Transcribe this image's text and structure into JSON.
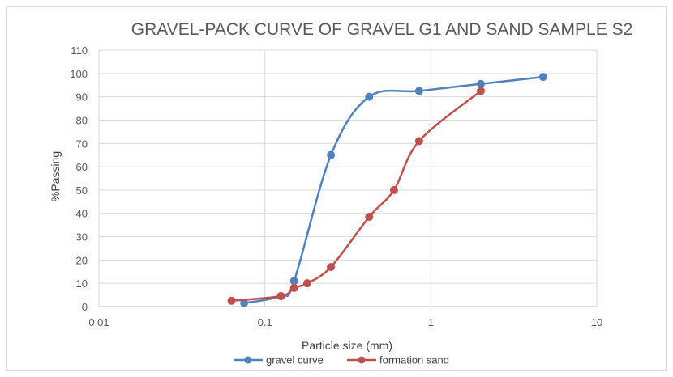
{
  "chart_data": {
    "type": "scatter",
    "title": "GRAVEL-PACK CURVE OF GRAVEL G1 AND SAND SAMPLE S2",
    "xlabel": "Particle size (mm)",
    "ylabel": "%Passing",
    "xscale": "log",
    "xlim": [
      0.01,
      10
    ],
    "ylim": [
      0,
      110
    ],
    "x_ticks": [
      "0.01",
      "0.1",
      "1",
      "10"
    ],
    "y_ticks": [
      "0",
      "10",
      "20",
      "30",
      "40",
      "50",
      "60",
      "70",
      "80",
      "90",
      "100",
      "110"
    ],
    "grid": true,
    "legend": "bottom",
    "series": [
      {
        "name": "gravel curve",
        "color": "#4f81bd",
        "x": [
          0.075,
          0.125,
          0.15,
          0.25,
          0.425,
          0.85,
          2.0,
          4.75
        ],
        "y": [
          1.5,
          4.5,
          11,
          65,
          90,
          92.5,
          95.5,
          98.5
        ]
      },
      {
        "name": "formation sand",
        "color": "#c0504d",
        "x": [
          0.063,
          0.125,
          0.15,
          0.18,
          0.25,
          0.425,
          0.6,
          0.85,
          2.0
        ],
        "y": [
          2.5,
          4.5,
          8,
          10,
          17,
          38.5,
          50,
          71,
          92.5
        ]
      }
    ]
  }
}
